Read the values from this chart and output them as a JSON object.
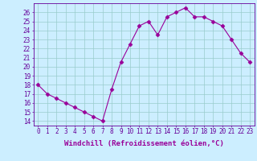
{
  "x": [
    0,
    1,
    2,
    3,
    4,
    5,
    6,
    7,
    8,
    9,
    10,
    11,
    12,
    13,
    14,
    15,
    16,
    17,
    18,
    19,
    20,
    21,
    22,
    23
  ],
  "y": [
    18,
    17,
    16.5,
    16,
    15.5,
    15,
    14.5,
    14,
    17.5,
    20.5,
    22.5,
    24.5,
    25,
    23.5,
    25.5,
    26,
    26.5,
    25.5,
    25.5,
    25,
    24.5,
    23,
    21.5,
    20.5
  ],
  "line_color": "#990099",
  "marker": "D",
  "marker_size": 2.5,
  "bg_color": "#cceeff",
  "grid_color": "#99cccc",
  "xlabel": "Windchill (Refroidissement éolien,°C)",
  "xlabel_color": "#990099",
  "ylabel_ticks": [
    14,
    15,
    16,
    17,
    18,
    19,
    20,
    21,
    22,
    23,
    24,
    25,
    26
  ],
  "ylim": [
    13.5,
    27.0
  ],
  "xlim": [
    -0.5,
    23.5
  ],
  "xticks": [
    0,
    1,
    2,
    3,
    4,
    5,
    6,
    7,
    8,
    9,
    10,
    11,
    12,
    13,
    14,
    15,
    16,
    17,
    18,
    19,
    20,
    21,
    22,
    23
  ],
  "tick_fontsize": 5.5,
  "xlabel_fontsize": 6.5,
  "spine_color": "#660099",
  "linewidth": 0.8
}
